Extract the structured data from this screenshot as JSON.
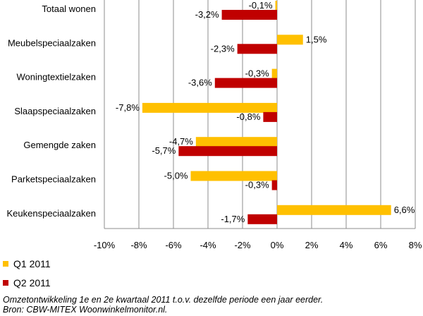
{
  "chart_data": {
    "type": "bar",
    "orientation": "horizontal",
    "categories": [
      "Totaal wonen",
      "Meubelspeciaalzaken",
      "Woningtextielzaken",
      "Slaapspeciaalzaken",
      "Gemengde zaken",
      "Parketspeciaalzaken",
      "Keukenspeciaalzaken"
    ],
    "series": [
      {
        "name": "Q1 2011",
        "color": "#FFC000",
        "values": [
          -0.1,
          1.5,
          -0.3,
          -7.8,
          -4.7,
          -5.0,
          6.6
        ],
        "labels": [
          "-0,1%",
          "1,5%",
          "-0,3%",
          "-7,8%",
          "-4,7%",
          "-5,0%",
          "6,6%"
        ]
      },
      {
        "name": "Q2 2011",
        "color": "#C00000",
        "values": [
          -3.2,
          -2.3,
          -3.6,
          -0.8,
          -5.7,
          -0.3,
          -1.7
        ],
        "labels": [
          "-3,2%",
          "-2,3%",
          "-3,6%",
          "-0,8%",
          "-5,7%",
          "-0,3%",
          "-1,7%"
        ]
      }
    ],
    "xlim": [
      -10,
      8
    ],
    "xticks": [
      -10,
      -8,
      -6,
      -4,
      -2,
      0,
      2,
      4,
      6,
      8
    ],
    "xtick_labels": [
      "-10%",
      "-8%",
      "-6%",
      "-4%",
      "-2%",
      "0%",
      "2%",
      "4%",
      "6%",
      "8%"
    ],
    "grid": true,
    "legend_position": "bottom-left"
  },
  "caption": {
    "line1": "Omzetontwikkeling 1e en 2e kwartaal 2011 t.o.v. dezelfde periode een jaar eerder.",
    "line2": "Bron: CBW-MITEX Woonwinkelmonitor.nl."
  }
}
